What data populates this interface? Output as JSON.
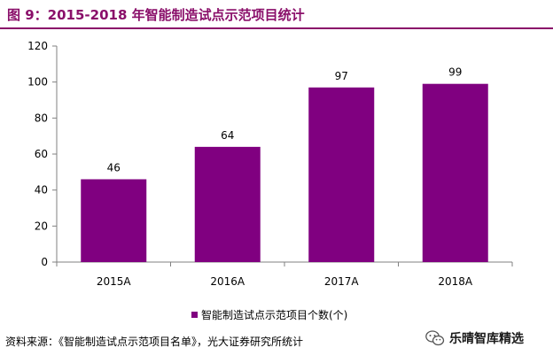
{
  "figure_title": "图 9：2015-2018 年智能制造试点示范项目统计",
  "source_note": "资料来源：《智能制造试点示范项目名单》，光大证券研究所统计",
  "watermark_text": "乐晴智库精选",
  "colors": {
    "title": "#8a0f6a",
    "bar": "#800080",
    "axis": "#808080"
  },
  "icons": {
    "watermark": "wechat-icon"
  },
  "chart_data": {
    "type": "bar",
    "categories": [
      "2015A",
      "2016A",
      "2017A",
      "2018A"
    ],
    "series": [
      {
        "name": "智能制造试点示范项目个数(个)",
        "values": [
          46,
          64,
          97,
          99
        ]
      }
    ],
    "data_labels": [
      "46",
      "64",
      "97",
      "99"
    ],
    "ylim": [
      0,
      120
    ],
    "yticks": [
      0,
      20,
      40,
      60,
      80,
      100,
      120
    ],
    "grid": false,
    "legend": "bottom-right"
  }
}
